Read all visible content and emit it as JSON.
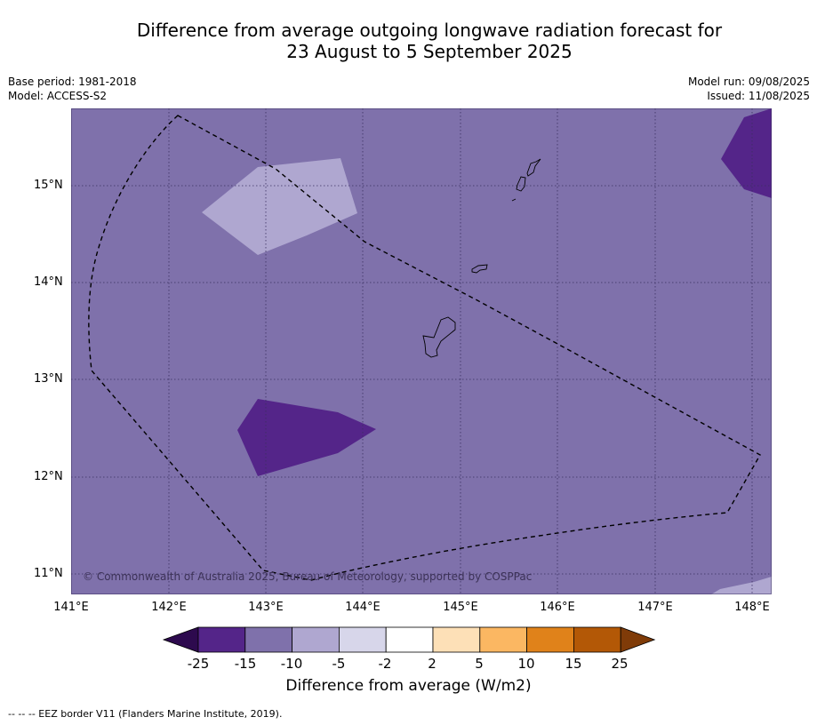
{
  "title": {
    "line1": "Difference from average outgoing longwave radiation forecast for",
    "line2": "23 August to 5 September 2025"
  },
  "meta_left": {
    "base_period": "Base period: 1981-2018",
    "model": "Model: ACCESS-S2"
  },
  "meta_right": {
    "model_run": "Model run: 09/08/2025",
    "issued": "Issued: 11/08/2025"
  },
  "map": {
    "background_color": "#7f71ab",
    "lon_range": [
      141.0,
      148.2
    ],
    "lat_range": [
      10.8,
      15.8
    ],
    "lat_ticks": [
      "15°N",
      "14°N",
      "13°N",
      "12°N",
      "11°N"
    ],
    "lon_ticks": [
      "141°E",
      "142°E",
      "143°E",
      "144°E",
      "145°E",
      "146°E",
      "147°E",
      "148°E"
    ],
    "gridlines": "dotted",
    "anomaly_regions": [
      {
        "category": "-10 to -5",
        "color": "#afa7d0"
      },
      {
        "category": "-25 to -15",
        "color": "#542589"
      },
      {
        "category": "-25 to -15",
        "color": "#542589"
      },
      {
        "category": "-10 to -5",
        "color": "#afa7d0"
      }
    ],
    "islands": [
      "Guam",
      "Rota",
      "Tinian",
      "Saipan"
    ],
    "eez_border": "dashed"
  },
  "copyright": "© Commonwealth of Australia 2025, Bureau of Meteorology, supported by COSPPac",
  "colorbar": {
    "colors": [
      "#2d0a4e",
      "#542589",
      "#7f71ab",
      "#afa7d0",
      "#d7d6ea",
      "#ffffff",
      "#fde0b7",
      "#fbb762",
      "#e0821a",
      "#b35806",
      "#7f3b08"
    ],
    "labels": [
      "-25",
      "-15",
      "-10",
      "-5",
      "-2",
      "2",
      "5",
      "10",
      "15",
      "25"
    ],
    "title": "Difference from average (W/m2)"
  },
  "footnote": "--  --  -- EEZ border V11 (Flanders Marine Institute, 2019)."
}
